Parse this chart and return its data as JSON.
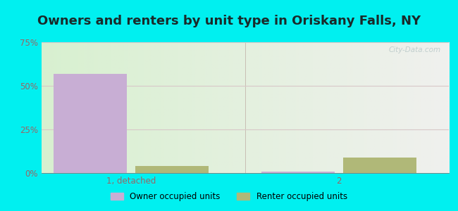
{
  "title": "Owners and renters by unit type in Oriskany Falls, NY",
  "title_fontsize": 13,
  "categories": [
    "1, detached",
    "2"
  ],
  "owner_values": [
    57,
    1
  ],
  "renter_values": [
    4,
    9
  ],
  "owner_color": "#c8aed4",
  "renter_color": "#b0b878",
  "ylim": [
    0,
    75
  ],
  "yticks": [
    0,
    25,
    50,
    75
  ],
  "ytick_labels": [
    "0%",
    "25%",
    "50%",
    "75%"
  ],
  "bar_width": 0.18,
  "outer_bg": "#00f0f0",
  "legend_owner": "Owner occupied units",
  "legend_renter": "Renter occupied units",
  "watermark": "City-Data.com",
  "grid_color": "#d8c8c8",
  "axis_tick_color": "#996666",
  "title_color": "#1a2a2a"
}
